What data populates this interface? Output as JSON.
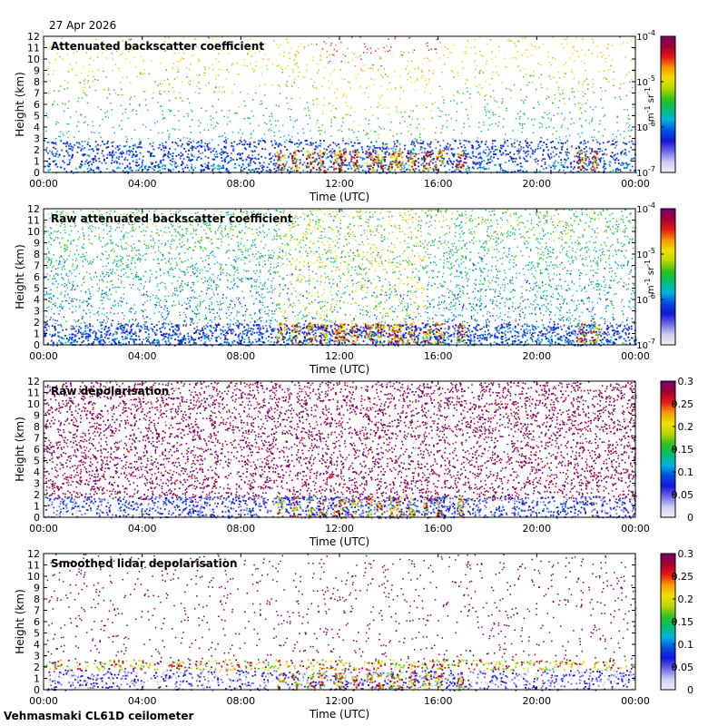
{
  "header": {
    "date": "27 Apr 2026"
  },
  "footer": {
    "site": "Vehmasmaki CL61D ceilometer"
  },
  "colors": {
    "frame": "#000000",
    "background": "#ffffff",
    "colormap": [
      "#f2f2f2",
      "#ccccf5",
      "#6a6ae8",
      "#1414d8",
      "#0050e0",
      "#00b4e0",
      "#00c070",
      "#30c020",
      "#b8d800",
      "#f0e000",
      "#f59a00",
      "#e81818",
      "#a00030",
      "#7a0070"
    ]
  },
  "chart_data": [
    {
      "type": "heatmap",
      "title": "Attenuated backscatter coefficient",
      "xlabel": "Time (UTC)",
      "ylabel": "Height (km)",
      "xticks": [
        "00:00",
        "04:00",
        "08:00",
        "12:00",
        "16:00",
        "20:00",
        "00:00"
      ],
      "yticks": [
        "0",
        "1",
        "2",
        "3",
        "4",
        "5",
        "6",
        "7",
        "8",
        "9",
        "10",
        "11",
        "12"
      ],
      "ylim": [
        0,
        12
      ],
      "colorbar": {
        "scale": "log",
        "ticks": [
          "10",
          "10",
          "10",
          "10"
        ],
        "exponents": [
          "-7",
          "-6",
          "-5",
          "-4"
        ],
        "unit": "m",
        "unit_sup1": "-1",
        "unit_mid": " sr",
        "unit_sup2": "-1",
        "range": [
          1e-07,
          0.0001
        ]
      },
      "variant": "backscatter"
    },
    {
      "type": "heatmap",
      "title": "Raw attenuated backscatter coefficient",
      "xlabel": "Time (UTC)",
      "ylabel": "Height (km)",
      "xticks": [
        "00:00",
        "04:00",
        "08:00",
        "12:00",
        "16:00",
        "20:00",
        "00:00"
      ],
      "yticks": [
        "0",
        "1",
        "2",
        "3",
        "4",
        "5",
        "6",
        "7",
        "8",
        "9",
        "10",
        "11",
        "12"
      ],
      "ylim": [
        0,
        12
      ],
      "colorbar": {
        "scale": "log",
        "ticks": [
          "10",
          "10",
          "10",
          "10"
        ],
        "exponents": [
          "-7",
          "-6",
          "-5",
          "-4"
        ],
        "unit": "m",
        "unit_sup1": "-1",
        "unit_mid": " sr",
        "unit_sup2": "-1",
        "range": [
          1e-07,
          0.0001
        ]
      },
      "variant": "raw_backscatter"
    },
    {
      "type": "heatmap",
      "title": "Raw depolarisation",
      "xlabel": "Time (UTC)",
      "ylabel": "Height (km)",
      "xticks": [
        "00:00",
        "04:00",
        "08:00",
        "12:00",
        "16:00",
        "20:00",
        "00:00"
      ],
      "yticks": [
        "0",
        "1",
        "2",
        "3",
        "4",
        "5",
        "6",
        "7",
        "8",
        "9",
        "10",
        "11",
        "12"
      ],
      "ylim": [
        0,
        12
      ],
      "colorbar": {
        "scale": "linear",
        "ticks": [
          "0",
          "0.05",
          "0.1",
          "0.15",
          "0.2",
          "0.25",
          "0.3"
        ],
        "range": [
          0,
          0.3
        ]
      },
      "variant": "raw_depol"
    },
    {
      "type": "heatmap",
      "title": "Smoothed lidar depolarisation",
      "xlabel": "Time (UTC)",
      "ylabel": "Height (km)",
      "xticks": [
        "00:00",
        "04:00",
        "08:00",
        "12:00",
        "16:00",
        "20:00",
        "00:00"
      ],
      "yticks": [
        "0",
        "1",
        "2",
        "3",
        "4",
        "5",
        "6",
        "7",
        "8",
        "9",
        "10",
        "11",
        "12"
      ],
      "ylim": [
        0,
        12
      ],
      "colorbar": {
        "scale": "linear",
        "ticks": [
          "0",
          "0.05",
          "0.1",
          "0.15",
          "0.2",
          "0.25",
          "0.3"
        ],
        "range": [
          0,
          0.3
        ]
      },
      "variant": "smooth_depol"
    }
  ]
}
